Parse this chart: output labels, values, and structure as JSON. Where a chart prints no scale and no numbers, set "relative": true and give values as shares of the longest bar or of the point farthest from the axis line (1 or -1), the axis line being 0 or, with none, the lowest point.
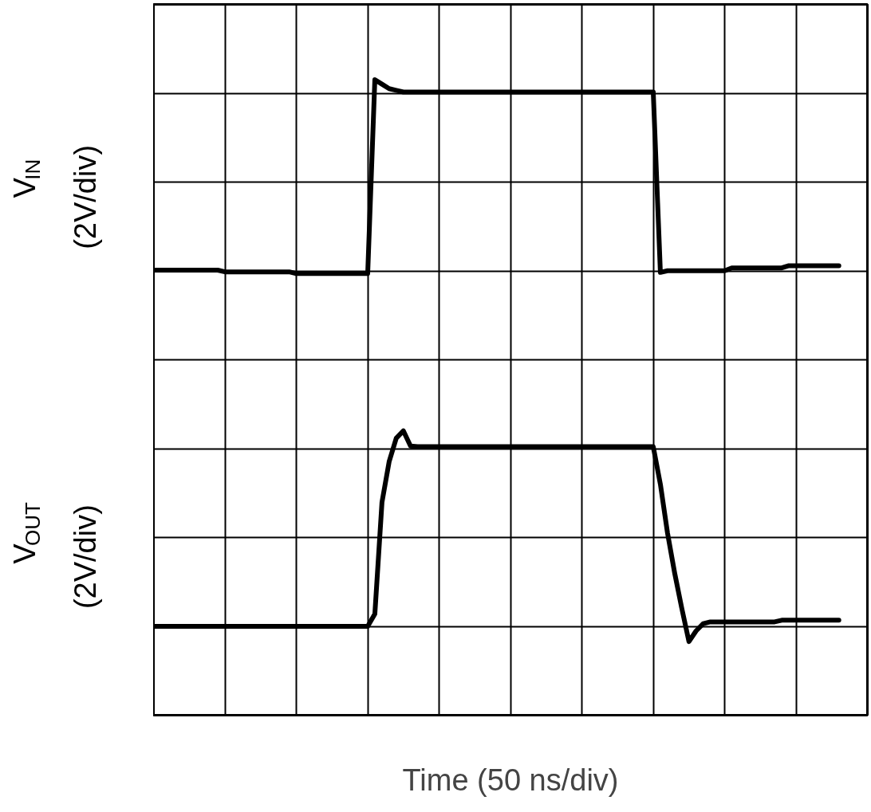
{
  "chart_data": {
    "type": "line",
    "relative": true,
    "xlabel": "Time (50 ns/div)",
    "grid": true,
    "line_style": "solid",
    "categories": [
      null,
      null,
      null,
      null,
      null,
      null,
      null,
      null,
      null,
      null,
      null,
      null,
      null,
      null,
      null,
      null,
      null,
      null,
      null,
      null,
      null,
      null,
      null,
      null,
      null,
      null,
      null,
      null,
      null,
      null,
      null,
      null,
      null,
      null,
      null,
      null,
      null,
      null,
      null,
      null,
      null,
      null,
      null,
      null,
      null,
      null,
      null,
      null,
      null,
      null,
      null,
      null,
      null,
      null,
      null,
      null,
      null,
      null,
      null,
      null,
      null,
      null,
      null,
      null,
      null,
      null,
      null,
      null,
      null,
      null,
      null,
      null,
      null,
      null,
      null,
      null,
      null,
      null,
      null,
      null,
      null,
      null,
      null,
      null,
      null,
      null,
      null,
      null,
      null,
      null,
      null,
      null,
      null,
      null,
      null,
      null,
      null
    ],
    "series": [
      {
        "name": "V$_{IN}$\n(2V/div)",
        "color": "#000000",
        "values": [
          0.661,
          0.661,
          0.661,
          0.661,
          0.661,
          0.661,
          0.661,
          0.661,
          0.661,
          0.661,
          0.658,
          0.658,
          0.658,
          0.658,
          0.658,
          0.658,
          0.658,
          0.658,
          0.658,
          0.658,
          0.655,
          0.655,
          0.655,
          0.655,
          0.655,
          0.655,
          0.655,
          0.655,
          0.655,
          0.655,
          0.655,
          1.0,
          0.992,
          0.984,
          0.981,
          0.978,
          0.978,
          0.978,
          0.978,
          0.978,
          0.978,
          0.978,
          0.978,
          0.978,
          0.978,
          0.978,
          0.978,
          0.978,
          0.978,
          0.978,
          0.978,
          0.978,
          0.978,
          0.978,
          0.978,
          0.978,
          0.978,
          0.978,
          0.978,
          0.978,
          0.978,
          0.978,
          0.978,
          0.978,
          0.978,
          0.978,
          0.978,
          0.978,
          0.978,
          0.978,
          0.978,
          0.657,
          0.66,
          0.66,
          0.66,
          0.66,
          0.66,
          0.66,
          0.66,
          0.66,
          0.66,
          0.665,
          0.665,
          0.665,
          0.665,
          0.665,
          0.665,
          0.665,
          0.665,
          0.669,
          0.669,
          0.669,
          0.669,
          0.669,
          0.669,
          0.669,
          0.669
        ]
      },
      {
        "name": "V$_{OUT}$\n(2V/div)",
        "color": "#000000",
        "values": [
          0.027,
          0.027,
          0.027,
          0.027,
          0.027,
          0.027,
          0.027,
          0.027,
          0.027,
          0.027,
          0.027,
          0.027,
          0.027,
          0.027,
          0.027,
          0.027,
          0.027,
          0.027,
          0.027,
          0.027,
          0.027,
          0.027,
          0.027,
          0.027,
          0.027,
          0.027,
          0.027,
          0.027,
          0.027,
          0.027,
          0.027,
          0.049,
          0.248,
          0.32,
          0.362,
          0.375,
          0.348,
          0.347,
          0.347,
          0.347,
          0.347,
          0.347,
          0.347,
          0.347,
          0.347,
          0.347,
          0.347,
          0.347,
          0.347,
          0.347,
          0.347,
          0.347,
          0.347,
          0.347,
          0.347,
          0.347,
          0.347,
          0.347,
          0.347,
          0.347,
          0.347,
          0.347,
          0.347,
          0.347,
          0.347,
          0.347,
          0.347,
          0.347,
          0.347,
          0.347,
          0.347,
          0.28,
          0.193,
          0.122,
          0.059,
          0.0,
          0.019,
          0.032,
          0.035,
          0.035,
          0.035,
          0.035,
          0.035,
          0.035,
          0.035,
          0.035,
          0.035,
          0.035,
          0.038,
          0.038,
          0.038,
          0.038,
          0.038,
          0.038,
          0.038,
          0.038,
          0.038
        ]
      }
    ]
  }
}
